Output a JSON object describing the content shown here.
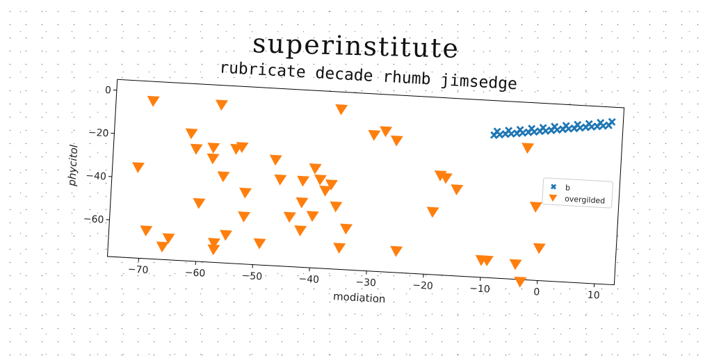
{
  "suptitle": "superinstitute",
  "colors": {
    "series_b": "#1f77b4",
    "series_overgilded": "#ff7f0e"
  },
  "chart_data": {
    "type": "scatter",
    "title": "rubricate decade rhumb jimsedge",
    "xlabel": "modiation",
    "ylabel": "phycitol",
    "xlim": [
      -75.5,
      13.5
    ],
    "ylim": [
      -77,
      5
    ],
    "xticks": [
      -70,
      -60,
      -50,
      -40,
      -30,
      -20,
      -10,
      0,
      10
    ],
    "yticks": [
      0,
      -20,
      -40,
      -60
    ],
    "grid": false,
    "legend_position": "center-right",
    "series": [
      {
        "name": "b",
        "marker": "x-filled",
        "color": "#1f77b4",
        "x": [
          -9.0,
          -8.0,
          -7.0,
          -6.0,
          -5.0,
          -4.0,
          -3.0,
          -2.0,
          -1.0,
          0.0,
          1.0,
          2.0,
          3.0,
          4.0,
          5.0,
          6.0,
          7.0,
          8.0,
          9.0,
          10.0,
          11.0,
          -8.5,
          -6.5,
          -4.5,
          -2.5,
          -0.5,
          1.5,
          3.5,
          5.5,
          7.5,
          9.5,
          11.5
        ],
        "y": [
          -11.0,
          -10.6,
          -10.2,
          -9.9,
          -9.6,
          -9.2,
          -8.8,
          -8.4,
          -8.0,
          -7.7,
          -7.3,
          -6.9,
          -6.5,
          -6.1,
          -5.8,
          -5.4,
          -5.0,
          -4.6,
          -4.3,
          -3.9,
          -3.5,
          -9.2,
          -8.5,
          -7.8,
          -7.0,
          -6.3,
          -5.5,
          -4.8,
          -4.0,
          -3.3,
          -2.5,
          -1.8
        ]
      },
      {
        "name": "overgilded",
        "marker": "triangle-down",
        "color": "#ff7f0e",
        "x": [
          -69,
          -71,
          -69,
          -65,
          -66,
          -60,
          -62,
          -61,
          -57,
          -58,
          -56,
          -57,
          -53,
          -54,
          -52,
          -55,
          -57,
          -58,
          -52,
          -47,
          -46,
          -49,
          -42,
          -42,
          -40,
          -39,
          -37,
          -38,
          -40,
          -42,
          -44,
          -36,
          -36,
          -34,
          -35,
          -30,
          -28,
          -25,
          -26,
          -18,
          -17,
          -15,
          -10,
          -9,
          -4,
          -3,
          -3,
          -1,
          0,
          -19
        ],
        "y": [
          -4,
          -35,
          -64,
          -67,
          -71,
          -50,
          -18,
          -25,
          -4,
          -29,
          -37,
          -68,
          -23,
          -24,
          -44,
          -64,
          -71,
          -24,
          -55,
          -28,
          -37,
          -67,
          -37,
          -47,
          -31,
          -36,
          -38,
          -41,
          -53,
          -60,
          -54,
          -3,
          -48,
          -58,
          -67,
          -14,
          -12,
          -67,
          -16,
          -31,
          -32,
          -37,
          -69,
          -69,
          -70,
          -16,
          -78,
          -43,
          -62,
          -48
        ]
      }
    ]
  }
}
